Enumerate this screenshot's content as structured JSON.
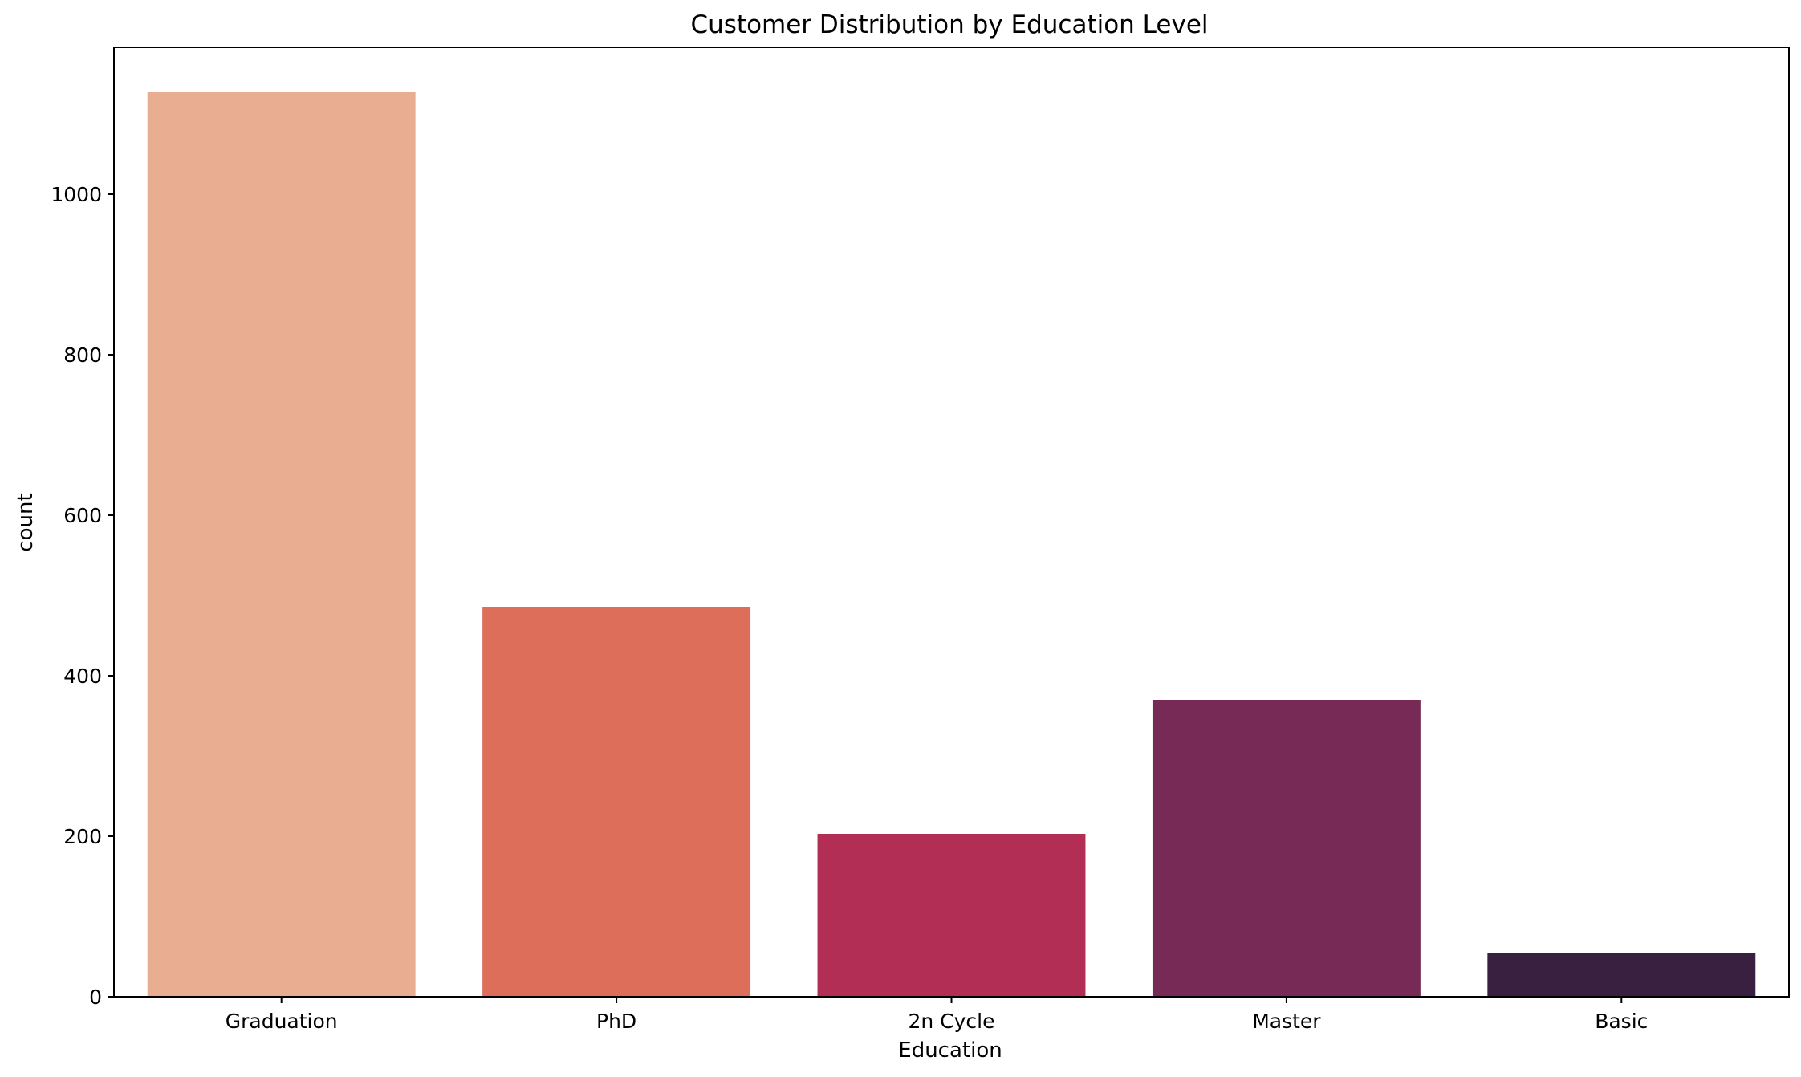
{
  "chart_data": {
    "type": "bar",
    "title": "Customer Distribution by Education Level",
    "xlabel": "Education",
    "ylabel": "count",
    "categories": [
      "Graduation",
      "PhD",
      "2n Cycle",
      "Master",
      "Basic"
    ],
    "values": [
      1127,
      486,
      203,
      370,
      54
    ],
    "colors": [
      "#e9ae92",
      "#dc6e5a",
      "#b22e55",
      "#762a55",
      "#3a2040"
    ],
    "ylim": [
      0,
      1183
    ],
    "yticks": [
      0,
      200,
      400,
      600,
      800,
      1000
    ],
    "grid": false,
    "legend": "none"
  }
}
